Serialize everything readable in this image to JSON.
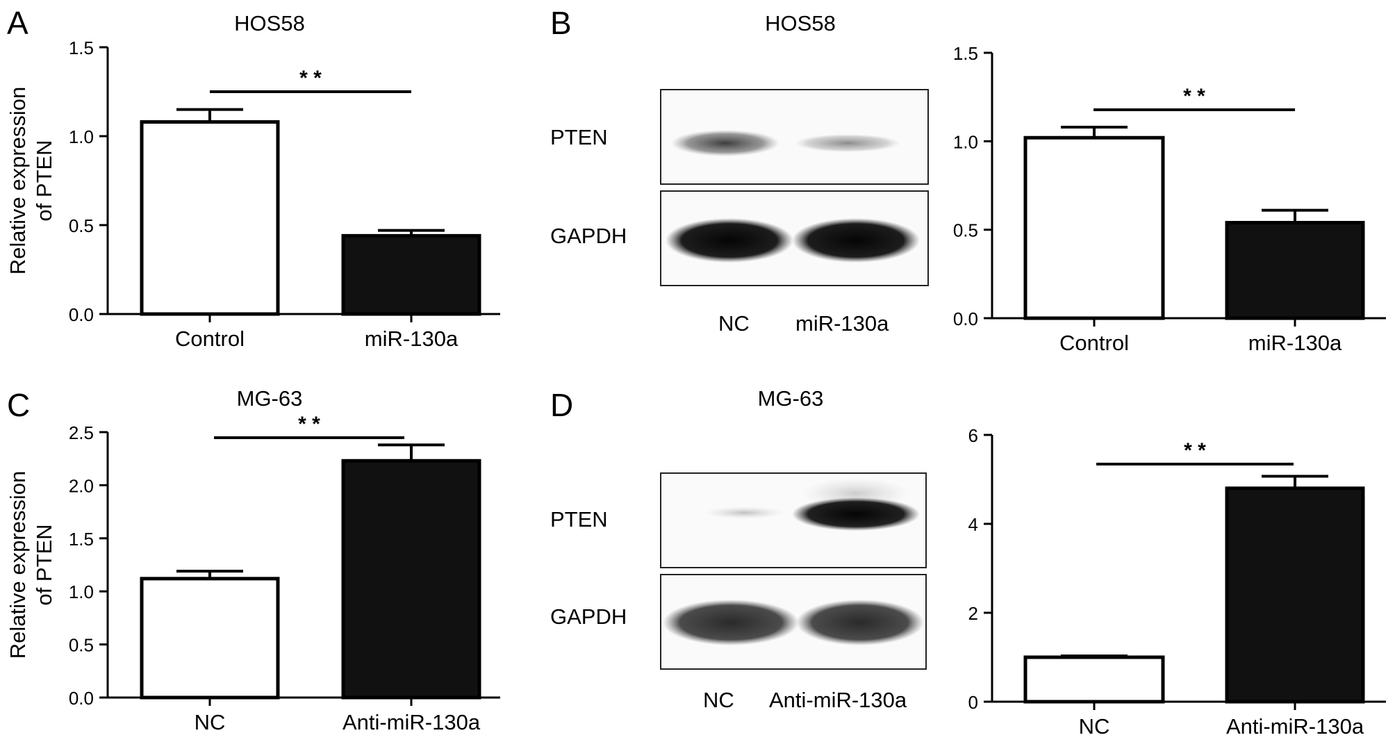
{
  "panels": {
    "A": {
      "letter": "A",
      "title": "HOS58"
    },
    "B": {
      "letter": "B",
      "title": "HOS58",
      "blot_rows": [
        "PTEN",
        "GAPDH"
      ],
      "blot_lanes": [
        "NC",
        "miR-130a"
      ]
    },
    "C": {
      "letter": "C",
      "title": "MG-63"
    },
    "D": {
      "letter": "D",
      "title": "MG-63",
      "blot_rows": [
        "PTEN",
        "GAPDH"
      ],
      "blot_lanes": [
        "NC",
        "Anti-miR-130a"
      ]
    }
  },
  "colors": {
    "bar_control": "#ffffff",
    "bar_treated": "#111111",
    "axis": "#000000"
  },
  "chart_data": [
    {
      "id": "A",
      "type": "bar",
      "title": "HOS58",
      "categories": [
        "Control",
        "miR-130a"
      ],
      "values": [
        1.08,
        0.44
      ],
      "errors": [
        0.07,
        0.03
      ],
      "ylabel": "Relative expression of PTEN",
      "ylabel_lines": [
        "Relative expression",
        "of PTEN"
      ],
      "ylim": [
        0,
        1.5
      ],
      "yticks": [
        "0.0",
        "0.5",
        "1.0",
        "1.5"
      ],
      "significance": "* *"
    },
    {
      "id": "B",
      "type": "bar",
      "categories": [
        "Control",
        "miR-130a"
      ],
      "values": [
        1.02,
        0.54
      ],
      "errors": [
        0.06,
        0.07
      ],
      "ylim": [
        0,
        1.5
      ],
      "yticks": [
        "0.0",
        "0.5",
        "1.0",
        "1.5"
      ],
      "significance": "* *"
    },
    {
      "id": "C",
      "type": "bar",
      "title": "MG-63",
      "categories": [
        "NC",
        "Anti-miR-130a"
      ],
      "values": [
        1.12,
        2.23
      ],
      "errors": [
        0.07,
        0.15
      ],
      "ylabel": "Relative expression of PTEN",
      "ylabel_lines": [
        "Relative expression",
        "of PTEN"
      ],
      "ylim": [
        0,
        2.5
      ],
      "yticks": [
        "0.0",
        "0.5",
        "1.0",
        "1.5",
        "2.0",
        "2.5"
      ],
      "significance": "* *"
    },
    {
      "id": "D",
      "type": "bar",
      "categories": [
        "NC",
        "Anti-miR-130a"
      ],
      "values": [
        1.0,
        4.8
      ],
      "errors": [
        0.03,
        0.27
      ],
      "ylim": [
        0,
        6
      ],
      "yticks": [
        "0",
        "2",
        "4",
        "6"
      ],
      "significance": "* *"
    }
  ]
}
